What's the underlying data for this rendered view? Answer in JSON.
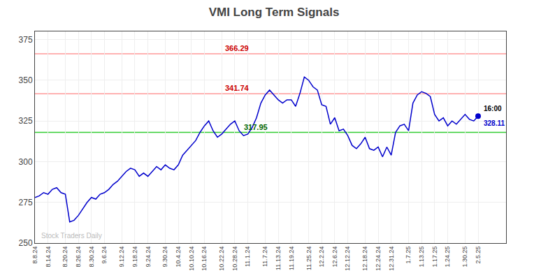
{
  "chart_data": {
    "type": "line",
    "title": "VMI Long Term Signals",
    "categories": [
      "8.8.24",
      null,
      null,
      "8.14.24",
      null,
      null,
      null,
      "8.20.24",
      null,
      null,
      "8.26.24",
      null,
      null,
      "8.30.24",
      null,
      null,
      "9.6.24",
      null,
      null,
      null,
      "9.12.24",
      null,
      null,
      "9.18.24",
      null,
      null,
      "9.24.24",
      null,
      null,
      null,
      "9.30.24",
      null,
      null,
      "10.4.24",
      null,
      null,
      "10.10.24",
      null,
      null,
      "10.16.24",
      null,
      null,
      null,
      "10.22.24",
      null,
      null,
      "10.28.24",
      null,
      null,
      "11.1.24",
      null,
      null,
      null,
      "11.7.24",
      null,
      null,
      "11.13.24",
      null,
      null,
      "11.19.24",
      null,
      null,
      null,
      "11.25.24",
      null,
      null,
      "12.2.24",
      null,
      null,
      "12.6.24",
      null,
      null,
      "12.12.24",
      null,
      null,
      null,
      "12.18.24",
      null,
      null,
      "12.24.24",
      null,
      null,
      "12.31.24",
      null,
      null,
      null,
      "1.7.25",
      null,
      null,
      "1.13.25",
      null,
      null,
      "1.17.25",
      null,
      null,
      "1.24.25",
      null,
      null,
      null,
      "1.30.25",
      null,
      null,
      "2.5.25"
    ],
    "values": [
      278,
      279,
      281,
      280,
      283,
      284,
      281,
      280,
      263,
      264,
      267,
      271,
      275,
      278,
      277,
      280,
      281,
      283,
      286,
      288,
      291,
      294,
      296,
      295,
      291,
      293,
      291,
      294,
      297,
      295,
      298,
      296,
      295,
      298,
      304,
      307,
      310,
      313,
      318,
      322,
      325,
      319,
      315,
      317,
      320,
      323,
      325,
      319,
      316,
      317,
      321,
      327,
      336,
      341,
      344,
      341,
      338,
      336,
      338,
      338,
      334,
      342,
      352,
      350,
      346,
      344,
      335,
      334,
      323,
      327,
      319,
      320,
      316,
      310,
      308,
      311,
      315,
      308,
      307,
      309,
      303,
      309,
      304,
      318,
      322,
      323,
      319,
      336,
      341,
      343,
      342,
      340,
      329,
      325,
      327,
      322,
      325,
      323,
      326,
      329,
      326,
      325,
      328
    ],
    "color": "#0000cc",
    "ylim": [
      250,
      380
    ],
    "yticks": [
      250,
      275,
      300,
      325,
      350,
      375
    ],
    "grid": true,
    "reference_lines": [
      {
        "value": 366.29,
        "color": "#ff9999",
        "label": "366.29",
        "label_color": "#cc0000"
      },
      {
        "value": 341.74,
        "color": "#ff9999",
        "label": "341.74",
        "label_color": "#cc0000"
      },
      {
        "value": 317.95,
        "color": "#33cc33",
        "label": "317.95",
        "label_color": "#006600"
      }
    ],
    "end_point": {
      "marker": "circle",
      "label": "16:00",
      "label_color": "#000000",
      "value_label": "328.11"
    },
    "watermark": {
      "text": "Stock Traders Daily",
      "color": "#bbbbbb"
    }
  }
}
